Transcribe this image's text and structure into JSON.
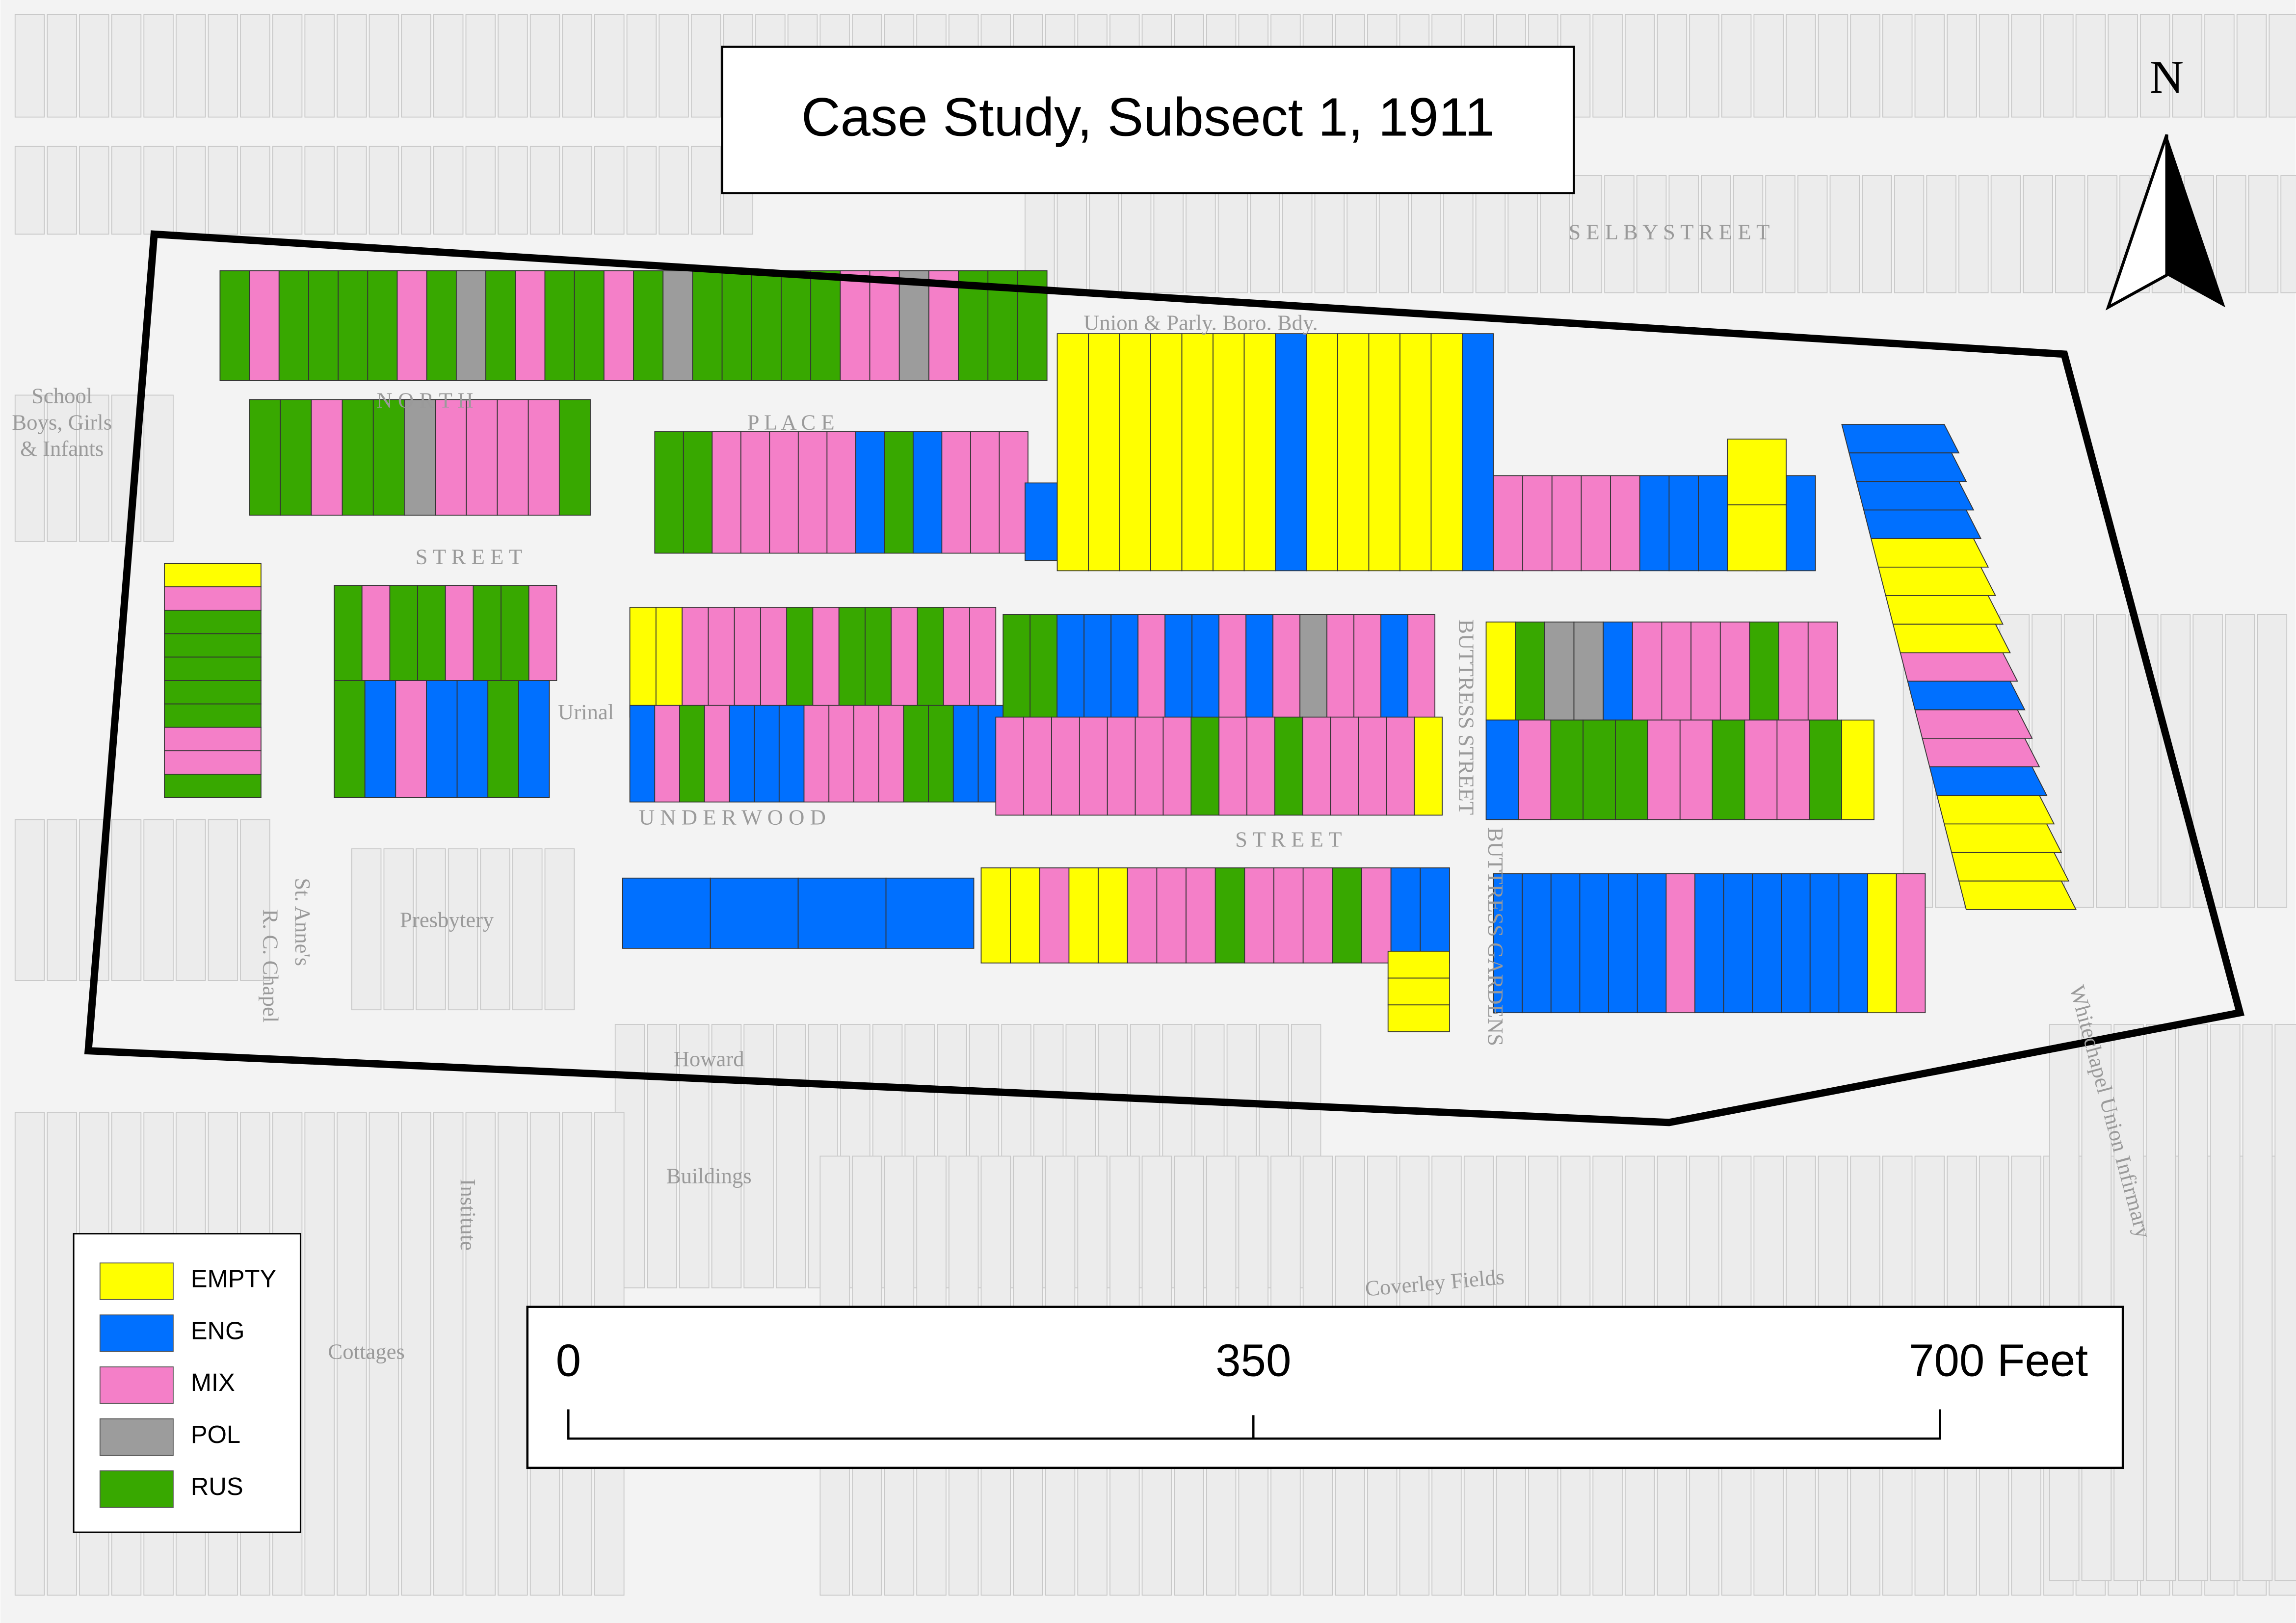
{
  "title": "Case Study, Subsect 1, 1911",
  "north_label": "N",
  "legend": [
    {
      "label": "EMPTY",
      "color": "#ffff00"
    },
    {
      "label": "ENG",
      "color": "#0070ff"
    },
    {
      "label": "MIX",
      "color": "#f47fc8"
    },
    {
      "label": "POL",
      "color": "#9c9c9c"
    },
    {
      "label": "RUS",
      "color": "#38a800"
    }
  ],
  "scale_bar": {
    "labels": [
      "0",
      "350",
      "700 Feet"
    ]
  },
  "map_labels": [
    "S E L B Y   S T R E E T",
    "N O R T H",
    "P L A C E",
    "S T R E E T",
    "U N D E R W O O D",
    "S T R E E T",
    "BUTTRESS STREET",
    "BUTTRESS GARDENS",
    "Union & Parly. Boro. Bdy.",
    "Presbytery",
    "Howard",
    "Buildings",
    "Coverley Fields",
    "Whitechapel Union Infirmary",
    "Cottages",
    "Institute",
    "School",
    "Boys, Girls",
    "& Infants",
    "St. Anne's",
    "R. C. Chapel",
    "Urinal"
  ]
}
